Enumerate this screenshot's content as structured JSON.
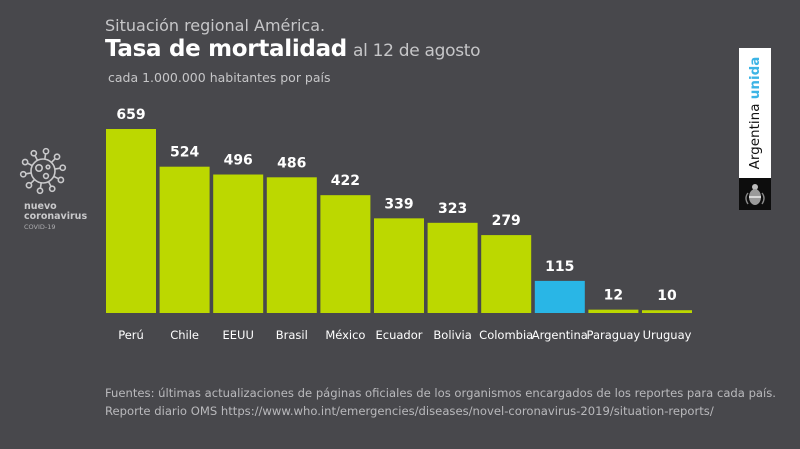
{
  "header": {
    "kicker": "Situación regional América.",
    "title": "Tasa de mortalidad",
    "date": "al 12 de agosto",
    "unit": "cada 1.000.000 habitantes por país"
  },
  "logo": {
    "virus_icon": "coronavirus-icon",
    "line1": "nuevo",
    "line2": "coronavirus",
    "line3": "COVID-19"
  },
  "badge": {
    "text_main": "Argentina",
    "text_accent": "unida",
    "emblem_icon": "national-coat-of-arms-icon"
  },
  "colors": {
    "background": "#48484c",
    "bar_default": "#bcd800",
    "bar_highlight": "#29b6e6",
    "accent_text": "#3cb4e5"
  },
  "chart_data": {
    "type": "bar",
    "title": "Tasa de mortalidad",
    "subtitle": "al 12 de agosto",
    "ylabel": "cada 1.000.000 habitantes por país",
    "xlabel": "",
    "categories": [
      "Perú",
      "Chile",
      "EEUU",
      "Brasil",
      "México",
      "Ecuador",
      "Bolivia",
      "Colombia",
      "Argentina",
      "Paraguay",
      "Uruguay"
    ],
    "values": [
      659,
      524,
      496,
      486,
      422,
      339,
      323,
      279,
      115,
      12,
      10
    ],
    "highlight": "Argentina",
    "ylim": [
      0,
      659
    ],
    "grid": false,
    "legend": "none",
    "data_labels": true
  },
  "footer": {
    "line1": "Fuentes: últimas actualizaciones de páginas oficiales de los organismos encargados de los reportes para cada país.",
    "line2": "Reporte diario OMS https://www.who.int/emergencies/diseases/novel-coronavirus-2019/situation-reports/"
  }
}
